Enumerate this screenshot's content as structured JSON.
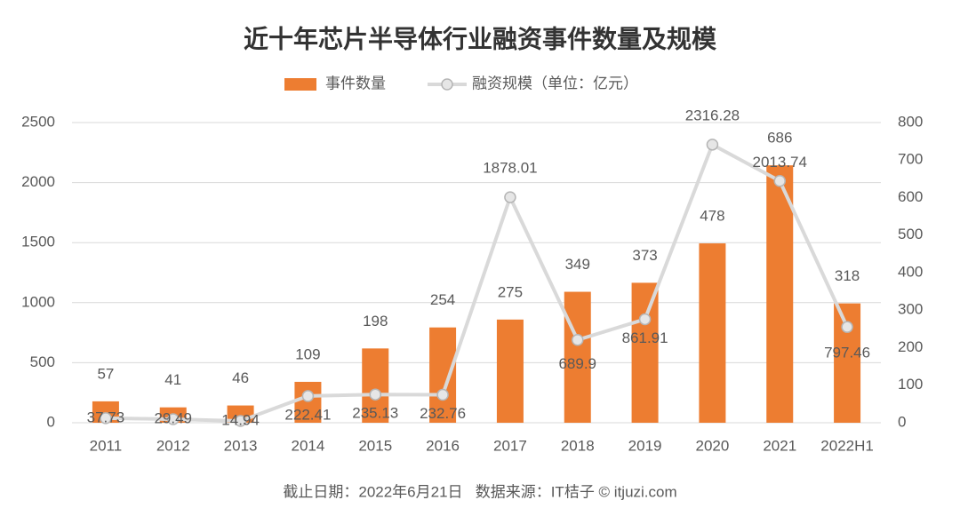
{
  "chart_data": {
    "type": "bar",
    "title": "近十年芯片半导体行业融资事件数量及规模",
    "categories": [
      "2011",
      "2012",
      "2013",
      "2014",
      "2015",
      "2016",
      "2017",
      "2018",
      "2019",
      "2020",
      "2021",
      "2022H1"
    ],
    "series": [
      {
        "name": "事件数量",
        "type": "bar",
        "axis": "y2",
        "color": "#ed7d31",
        "values": [
          57,
          41,
          46,
          109,
          198,
          254,
          275,
          349,
          373,
          478,
          686,
          318
        ]
      },
      {
        "name": "融资规模（单位：亿元）",
        "type": "line",
        "color": "#d9d9d9",
        "values": [
          37.73,
          29.49,
          14.94,
          222.41,
          235.13,
          232.76,
          1878.01,
          689.9,
          861.91,
          2316.28,
          2013.74,
          797.46
        ]
      }
    ],
    "ylim": [
      0,
      2500
    ],
    "yticks": [
      0,
      500,
      1000,
      1500,
      2000,
      2500
    ],
    "y2lim": [
      0,
      800
    ],
    "y2ticks": [
      0,
      100,
      200,
      300,
      400,
      500,
      600,
      700,
      800
    ],
    "grid": true,
    "legend": "top",
    "source": "截止日期：2022年6月21日   数据来源：IT桔子 © itjuzi.com"
  }
}
